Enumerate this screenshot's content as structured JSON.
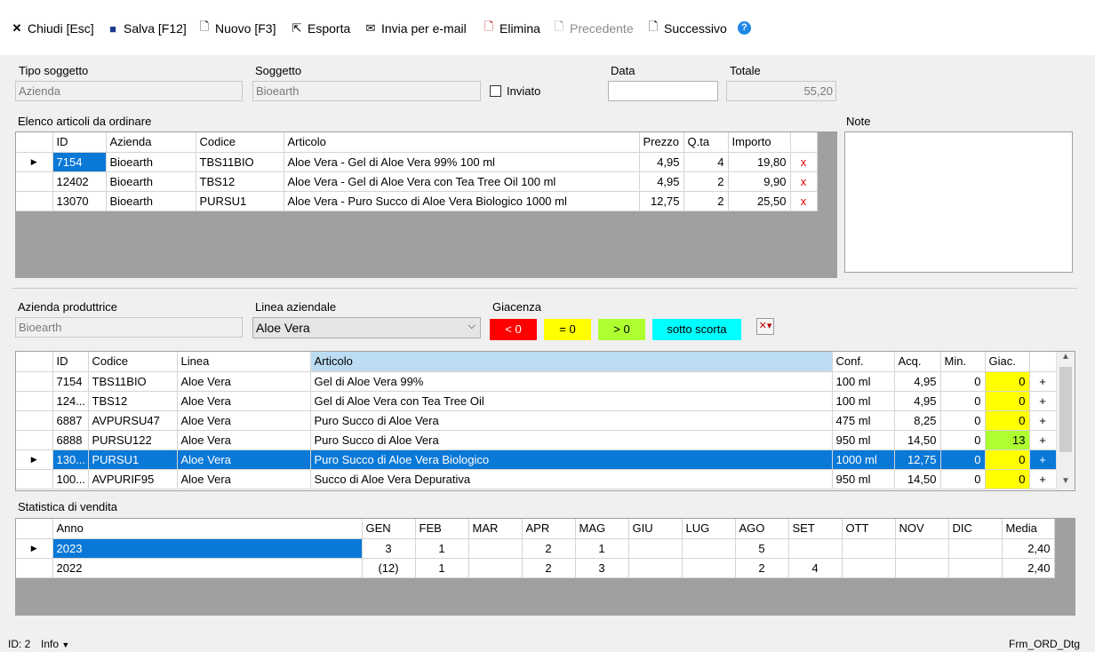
{
  "toolbar": {
    "close": "Chiudi [Esc]",
    "save": "Salva [F12]",
    "new": "Nuovo [F3]",
    "export": "Esporta",
    "email": "Invia per e-mail",
    "delete": "Elimina",
    "prev": "Precedente",
    "next": "Successivo",
    "help": "?"
  },
  "header": {
    "tipo_label": "Tipo soggetto",
    "tipo_value": "Azienda",
    "soggetto_label": "Soggetto",
    "soggetto_value": "Bioearth",
    "inviato_label": "Inviato",
    "data_label": "Data",
    "data_value": "",
    "totale_label": "Totale",
    "totale_value": "55,20"
  },
  "order": {
    "label": "Elenco articoli da ordinare",
    "notes_label": "Note",
    "columns": [
      "ID",
      "Azienda",
      "Codice",
      "Articolo",
      "Prezzo",
      "Q.ta",
      "Importo"
    ],
    "rows": [
      {
        "id": "7154",
        "azienda": "Bioearth",
        "codice": "TBS11BIO",
        "articolo": "Aloe Vera - Gel di Aloe Vera 99% 100 ml",
        "prezzo": "4,95",
        "qta": "4",
        "importo": "19,80",
        "del": "x"
      },
      {
        "id": "12402",
        "azienda": "Bioearth",
        "codice": "TBS12",
        "articolo": "Aloe Vera - Gel di Aloe Vera con Tea Tree Oil 100 ml",
        "prezzo": "4,95",
        "qta": "2",
        "importo": "9,90",
        "del": "x"
      },
      {
        "id": "13070",
        "azienda": "Bioearth",
        "codice": "PURSU1",
        "articolo": "Aloe Vera - Puro Succo di Aloe Vera Biologico 1000 ml",
        "prezzo": "12,75",
        "qta": "2",
        "importo": "25,50",
        "del": "x"
      }
    ]
  },
  "filters": {
    "azienda_label": "Azienda produttrice",
    "azienda_value": "Bioearth",
    "linea_label": "Linea aziendale",
    "linea_value": "Aloe Vera",
    "giacenza_label": "Giacenza",
    "legend_neg": "< 0",
    "legend_zero": "= 0",
    "legend_pos": "> 0",
    "legend_low": "sotto scorta",
    "colors": {
      "neg": "#ff0000",
      "zero": "#ffff00",
      "pos": "#adff2f",
      "low": "#00ffff"
    }
  },
  "products": {
    "columns": [
      "ID",
      "Codice",
      "Linea",
      "Articolo",
      "Conf.",
      "Acq.",
      "Min.",
      "Giac."
    ],
    "rows": [
      {
        "id": "7154",
        "codice": "TBS11BIO",
        "linea": "Aloe Vera",
        "articolo": "Gel di Aloe Vera 99%",
        "conf": "100 ml",
        "acq": "4,95",
        "min": "0",
        "giac": "0",
        "add": "+"
      },
      {
        "id": "124...",
        "codice": "TBS12",
        "linea": "Aloe Vera",
        "articolo": "Gel di Aloe Vera con Tea Tree Oil",
        "conf": "100 ml",
        "acq": "4,95",
        "min": "0",
        "giac": "0",
        "add": "+"
      },
      {
        "id": "6887",
        "codice": "AVPURSU47",
        "linea": "Aloe Vera",
        "articolo": "Puro Succo di Aloe Vera",
        "conf": "475 ml",
        "acq": "8,25",
        "min": "0",
        "giac": "0",
        "add": "+"
      },
      {
        "id": "6888",
        "codice": "PURSU122",
        "linea": "Aloe Vera",
        "articolo": "Puro Succo di Aloe Vera",
        "conf": "950 ml",
        "acq": "14,50",
        "min": "0",
        "giac": "13",
        "add": "+"
      },
      {
        "id": "130...",
        "codice": "PURSU1",
        "linea": "Aloe Vera",
        "articolo": "Puro Succo di Aloe Vera Biologico",
        "conf": "1000 ml",
        "acq": "12,75",
        "min": "0",
        "giac": "0",
        "add": "+"
      },
      {
        "id": "100...",
        "codice": "AVPURIF95",
        "linea": "Aloe Vera",
        "articolo": "Succo di Aloe Vera Depurativa",
        "conf": "950 ml",
        "acq": "14,50",
        "min": "0",
        "giac": "0",
        "add": "+"
      }
    ]
  },
  "stats": {
    "label": "Statistica di vendita",
    "columns": [
      "Anno",
      "GEN",
      "FEB",
      "MAR",
      "APR",
      "MAG",
      "GIU",
      "LUG",
      "AGO",
      "SET",
      "OTT",
      "NOV",
      "DIC",
      "Media"
    ],
    "rows": [
      [
        "2023",
        "3",
        "1",
        "",
        "2",
        "1",
        "",
        "",
        "5",
        "",
        "",
        "",
        "",
        "2,40"
      ],
      [
        "2022",
        "(12)",
        "1",
        "",
        "2",
        "3",
        "",
        "",
        "2",
        "4",
        "",
        "",
        "",
        "2,40"
      ]
    ]
  },
  "status": {
    "id": "ID: 2",
    "info": "Info",
    "form": "Frm_ORD_Dtg"
  }
}
